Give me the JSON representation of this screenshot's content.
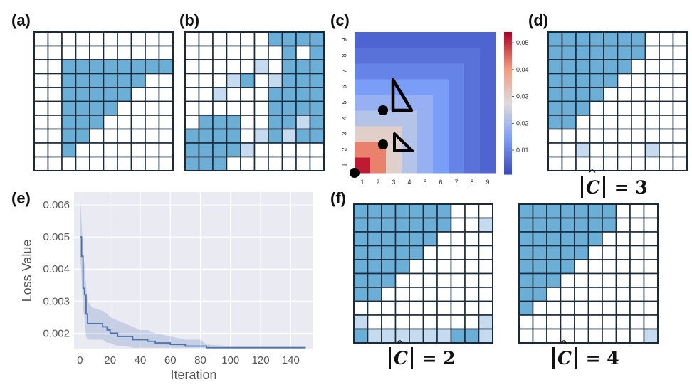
{
  "panels": {
    "a": "(a)",
    "b": "(b)",
    "c": "(c)",
    "d": "(d)",
    "e": "(e)",
    "f": "(f)"
  },
  "captions": {
    "d": {
      "symbol": "C",
      "value": "3"
    },
    "f_left": {
      "symbol": "C",
      "value": "2"
    },
    "f_right": {
      "symbol": "C",
      "value": "4"
    }
  },
  "colors": {
    "cell_fill": "#6baed6",
    "cell_light": "#c6dbef",
    "cell_pale": "#eef5fb",
    "grid_line": "#1b2a3a",
    "heatmap_low": "#3b4cc0",
    "heatmap_mid": "#dddcdc",
    "heatmap_high": "#b40426",
    "loss_line": "#4c72b0",
    "plot_bg": "#eaeaf2"
  },
  "chart_data": [
    {
      "type": "heatmap",
      "panel": "c",
      "x_ticks": [
        "1",
        "2",
        "3",
        "4",
        "5",
        "6",
        "7",
        "8",
        "9"
      ],
      "y_ticks": [
        "1",
        "2",
        "3",
        "4",
        "5",
        "6",
        "7",
        "8",
        "9"
      ],
      "colorbar_ticks": [
        "0.01",
        "0.02",
        "0.03",
        "0.04",
        "0.05"
      ],
      "colorbar_range": [
        0.001,
        0.054
      ],
      "value_by_max_index": [
        0.052,
        0.043,
        0.03,
        0.022,
        0.018,
        0.014,
        0.01,
        0.007,
        0.005
      ]
    },
    {
      "type": "line",
      "panel": "e",
      "xlabel": "Iteration",
      "ylabel": "Loss Value",
      "x_ticks": [
        "0",
        "20",
        "40",
        "60",
        "80",
        "100",
        "120",
        "140"
      ],
      "y_ticks": [
        "0.002",
        "0.003",
        "0.004",
        "0.005",
        "0.006"
      ],
      "xlim": [
        -4,
        155
      ],
      "ylim": [
        0.0015,
        0.0064
      ],
      "grid": true,
      "series": [
        {
          "x": [
            0,
            1,
            2,
            3,
            4,
            5,
            8,
            15,
            18,
            20,
            25,
            30,
            35,
            40,
            45,
            50,
            60,
            70,
            80,
            84,
            100,
            120,
            150
          ],
          "y": [
            0.005,
            0.0044,
            0.0034,
            0.0032,
            0.0026,
            0.0023,
            0.0023,
            0.0022,
            0.0021,
            0.002,
            0.0019,
            0.0019,
            0.0018,
            0.0018,
            0.00175,
            0.0017,
            0.00165,
            0.0016,
            0.0016,
            0.00155,
            0.00155,
            0.00155,
            0.00155
          ],
          "lower": [
            0.0045,
            0.0038,
            0.0028,
            0.0025,
            0.0019,
            0.0018,
            0.0018,
            0.0018,
            0.0017,
            0.0017,
            0.0016,
            0.0016,
            0.00155,
            0.00155,
            0.00155,
            0.00155,
            0.00155,
            0.00155,
            0.00155,
            0.00155,
            0.00155,
            0.00155,
            0.00155
          ],
          "upper": [
            0.0063,
            0.0055,
            0.0045,
            0.0041,
            0.0035,
            0.003,
            0.0028,
            0.0027,
            0.0026,
            0.0025,
            0.0024,
            0.0023,
            0.0022,
            0.0021,
            0.0021,
            0.002,
            0.0019,
            0.0018,
            0.0018,
            0.00165,
            0.0016,
            0.0016,
            0.0016
          ]
        }
      ]
    }
  ],
  "grids": {
    "a": [
      "0000000000",
      "0000000000",
      "0011111111",
      "0011111100",
      "0011111000",
      "0011110000",
      "0011100000",
      "0011000000",
      "0010000000",
      "0000000000"
    ],
    "b": [
      "0000001111",
      "0000000101",
      "0000020111",
      "0002102111",
      "0020001111",
      "0000001111",
      "0111001121",
      "1111021211",
      "1111200000",
      "1110000000"
    ],
    "d": [
      "1111111000",
      "1111111000",
      "1111110000",
      "1111100000",
      "1111000000",
      "1110000000",
      "1100000000",
      "0000000000",
      "0020000200",
      "0000000000"
    ],
    "f_left": [
      "1111111000",
      "1111111002",
      "1111110000",
      "1111100000",
      "1111000000",
      "1110000000",
      "1100000000",
      "0000000000",
      "2000000002",
      "1222222112"
    ],
    "f_right": [
      "1111111000",
      "1111111000",
      "1111110000",
      "1111100000",
      "1111000000",
      "1110000000",
      "1100000000",
      "1000000000",
      "0000000000",
      "0000000002"
    ]
  }
}
